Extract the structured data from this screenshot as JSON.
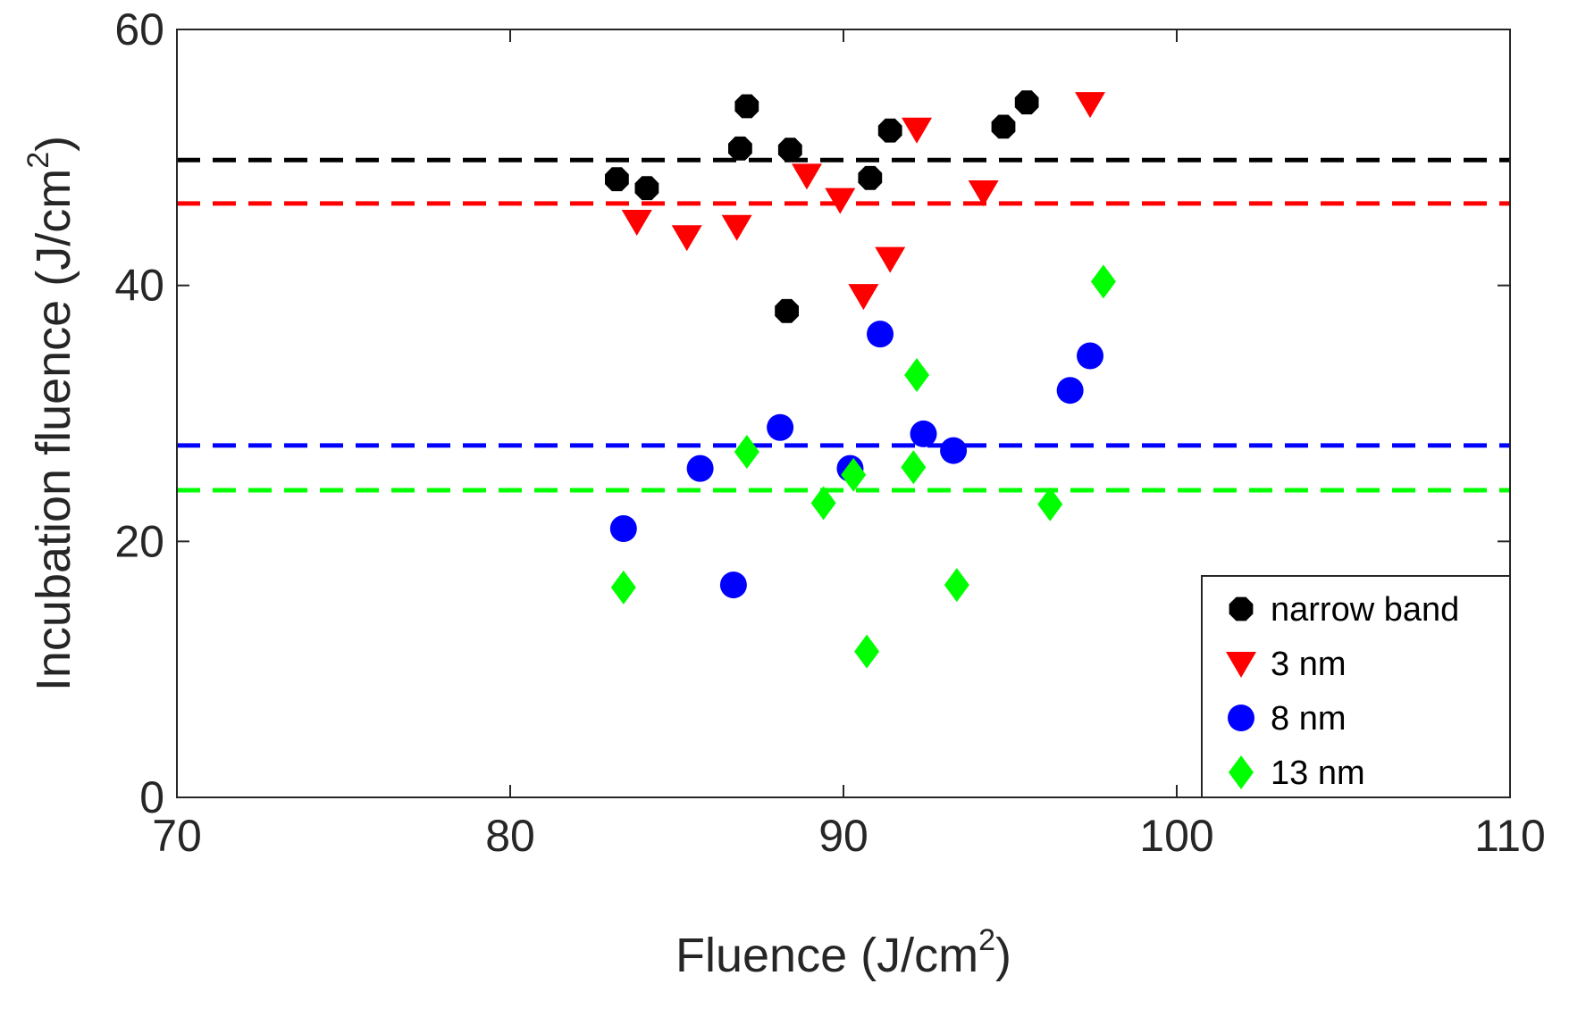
{
  "chart_data": {
    "type": "scatter",
    "title": "",
    "xlabel": {
      "main": "Fluence (J/cm",
      "sup": "2",
      "close": ")"
    },
    "ylabel": {
      "main": "Incubation fluence (J/cm",
      "sup": "2",
      "close": ")"
    },
    "xlim": [
      70,
      110
    ],
    "ylim": [
      0,
      60
    ],
    "xticks": [
      70,
      80,
      90,
      100,
      110
    ],
    "yticks": [
      0,
      20,
      40,
      60
    ],
    "grid": false,
    "legend_position": "bottom-right",
    "series": [
      {
        "name": "narrow band",
        "color": "#000000",
        "marker": "octagon",
        "x": [
          83.2,
          84.1,
          86.9,
          87.1,
          88.3,
          88.4,
          90.8,
          91.4,
          94.8,
          95.5
        ],
        "y": [
          48.3,
          47.6,
          50.7,
          54.0,
          38.0,
          50.6,
          48.4,
          52.1,
          52.4,
          54.3
        ],
        "threshold": 49.8
      },
      {
        "name": "3 nm",
        "color": "#ff0000",
        "marker": "triangle-down",
        "x": [
          83.8,
          85.3,
          86.8,
          88.9,
          89.9,
          90.6,
          91.4,
          92.2,
          94.2,
          97.4
        ],
        "y": [
          45.0,
          43.8,
          44.6,
          48.6,
          46.7,
          39.2,
          42.1,
          52.2,
          47.3,
          54.2
        ],
        "threshold": 46.4
      },
      {
        "name": "8 nm",
        "color": "#0000ff",
        "marker": "circle",
        "x": [
          83.4,
          85.7,
          86.7,
          88.1,
          90.2,
          91.1,
          92.4,
          93.3,
          96.8,
          97.4
        ],
        "y": [
          21.0,
          25.7,
          16.6,
          28.9,
          25.7,
          36.2,
          28.4,
          27.1,
          31.8,
          34.5
        ],
        "threshold": 27.5
      },
      {
        "name": "13 nm",
        "color": "#00ff00",
        "marker": "diamond",
        "x": [
          83.4,
          87.1,
          89.4,
          90.3,
          90.7,
          92.1,
          92.2,
          93.4,
          96.2,
          97.8
        ],
        "y": [
          16.4,
          27.0,
          23.0,
          25.2,
          11.4,
          25.8,
          33.0,
          16.6,
          22.9,
          40.3
        ],
        "threshold": 24.0
      }
    ]
  }
}
